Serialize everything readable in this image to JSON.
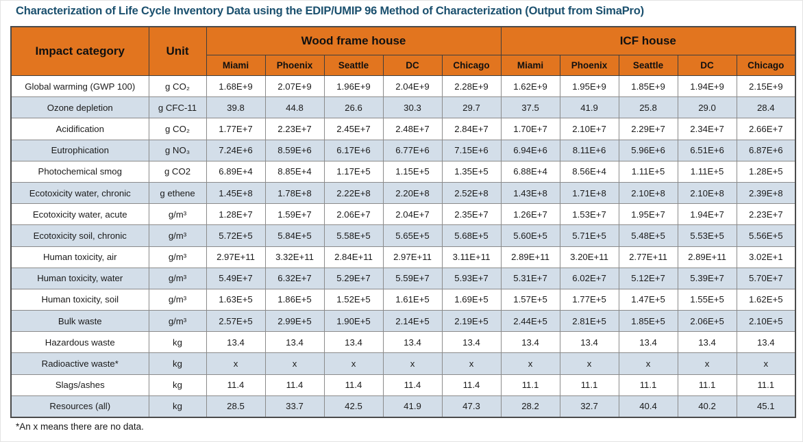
{
  "title": "Characterization of Life Cycle Inventory Data using the EDIP/UMIP 96 Method of Characterization (Output from SimaPro)",
  "footnote": "*An x means there are no data.",
  "colors": {
    "title_blue": "#1B506E",
    "header_orange": "#E2751F",
    "subheader_orange": "#F3AE7E",
    "row_alt_blue": "#D3DEE9"
  },
  "table": {
    "impact_header": "Impact category",
    "unit_header": "Unit",
    "groups": [
      {
        "label": "Wood frame house",
        "cities": [
          "Miami",
          "Phoenix",
          "Seattle",
          "DC",
          "Chicago"
        ]
      },
      {
        "label": "ICF house",
        "cities": [
          "Miami",
          "Phoenix",
          "Seattle",
          "DC",
          "Chicago"
        ]
      }
    ],
    "rows": [
      {
        "impact": "Global warming (GWP 100)",
        "unit": "g CO₂",
        "wood": [
          "1.68E+9",
          "2.07E+9",
          "1.96E+9",
          "2.04E+9",
          "2.28E+9"
        ],
        "icf": [
          "1.62E+9",
          "1.95E+9",
          "1.85E+9",
          "1.94E+9",
          "2.15E+9"
        ]
      },
      {
        "impact": "Ozone depletion",
        "unit": "g CFC-11",
        "wood": [
          "39.8",
          "44.8",
          "26.6",
          "30.3",
          "29.7"
        ],
        "icf": [
          "37.5",
          "41.9",
          "25.8",
          "29.0",
          "28.4"
        ]
      },
      {
        "impact": "Acidification",
        "unit": "g CO₂",
        "wood": [
          "1.77E+7",
          "2.23E+7",
          "2.45E+7",
          "2.48E+7",
          "2.84E+7"
        ],
        "icf": [
          "1.70E+7",
          "2.10E+7",
          "2.29E+7",
          "2.34E+7",
          "2.66E+7"
        ]
      },
      {
        "impact": "Eutrophication",
        "unit": "g NO₃",
        "wood": [
          "7.24E+6",
          "8.59E+6",
          "6.17E+6",
          "6.77E+6",
          "7.15E+6"
        ],
        "icf": [
          "6.94E+6",
          "8.11E+6",
          "5.96E+6",
          "6.51E+6",
          "6.87E+6"
        ]
      },
      {
        "impact": "Photochemical smog",
        "unit": "g CO2",
        "wood": [
          "6.89E+4",
          "8.85E+4",
          "1.17E+5",
          "1.15E+5",
          "1.35E+5"
        ],
        "icf": [
          "6.88E+4",
          "8.56E+4",
          "1.11E+5",
          "1.11E+5",
          "1.28E+5"
        ]
      },
      {
        "impact": "Ecotoxicity water, chronic",
        "unit": "g ethene",
        "wood": [
          "1.45E+8",
          "1.78E+8",
          "2.22E+8",
          "2.20E+8",
          "2.52E+8"
        ],
        "icf": [
          "1.43E+8",
          "1.71E+8",
          "2.10E+8",
          "2.10E+8",
          "2.39E+8"
        ]
      },
      {
        "impact": "Ecotoxicity water, acute",
        "unit": "g/m³",
        "wood": [
          "1.28E+7",
          "1.59E+7",
          "2.06E+7",
          "2.04E+7",
          "2.35E+7"
        ],
        "icf": [
          "1.26E+7",
          "1.53E+7",
          "1.95E+7",
          "1.94E+7",
          "2.23E+7"
        ]
      },
      {
        "impact": "Ecotoxicity soil, chronic",
        "unit": "g/m³",
        "wood": [
          "5.72E+5",
          "5.84E+5",
          "5.58E+5",
          "5.65E+5",
          "5.68E+5"
        ],
        "icf": [
          "5.60E+5",
          "5.71E+5",
          "5.48E+5",
          "5.53E+5",
          "5.56E+5"
        ]
      },
      {
        "impact": "Human toxicity, air",
        "unit": "g/m³",
        "wood": [
          "2.97E+11",
          "3.32E+11",
          "2.84E+11",
          "2.97E+11",
          "3.11E+11"
        ],
        "icf": [
          "2.89E+11",
          "3.20E+11",
          "2.77E+11",
          "2.89E+11",
          "3.02E+1"
        ]
      },
      {
        "impact": "Human toxicity, water",
        "unit": "g/m³",
        "wood": [
          "5.49E+7",
          "6.32E+7",
          "5.29E+7",
          "5.59E+7",
          "5.93E+7"
        ],
        "icf": [
          "5.31E+7",
          "6.02E+7",
          "5.12E+7",
          "5.39E+7",
          "5.70E+7"
        ]
      },
      {
        "impact": "Human toxicity, soil",
        "unit": "g/m³",
        "wood": [
          "1.63E+5",
          "1.86E+5",
          "1.52E+5",
          "1.61E+5",
          "1.69E+5"
        ],
        "icf": [
          "1.57E+5",
          "1.77E+5",
          "1.47E+5",
          "1.55E+5",
          "1.62E+5"
        ]
      },
      {
        "impact": "Bulk waste",
        "unit": "g/m³",
        "wood": [
          "2.57E+5",
          "2.99E+5",
          "1.90E+5",
          "2.14E+5",
          "2.19E+5"
        ],
        "icf": [
          "2.44E+5",
          "2.81E+5",
          "1.85E+5",
          "2.06E+5",
          "2.10E+5"
        ]
      },
      {
        "impact": "Hazardous waste",
        "unit": "kg",
        "wood": [
          "13.4",
          "13.4",
          "13.4",
          "13.4",
          "13.4"
        ],
        "icf": [
          "13.4",
          "13.4",
          "13.4",
          "13.4",
          "13.4"
        ]
      },
      {
        "impact": "Radioactive waste*",
        "unit": "kg",
        "wood": [
          "x",
          "x",
          "x",
          "x",
          "x"
        ],
        "icf": [
          "x",
          "x",
          "x",
          "x",
          "x"
        ]
      },
      {
        "impact": "Slags/ashes",
        "unit": "kg",
        "wood": [
          "11.4",
          "11.4",
          "11.4",
          "11.4",
          "11.4"
        ],
        "icf": [
          "11.1",
          "11.1",
          "11.1",
          "11.1",
          "11.1"
        ]
      },
      {
        "impact": "Resources (all)",
        "unit": "kg",
        "wood": [
          "28.5",
          "33.7",
          "42.5",
          "41.9",
          "47.3"
        ],
        "icf": [
          "28.2",
          "32.7",
          "40.4",
          "40.2",
          "45.1"
        ]
      }
    ]
  }
}
